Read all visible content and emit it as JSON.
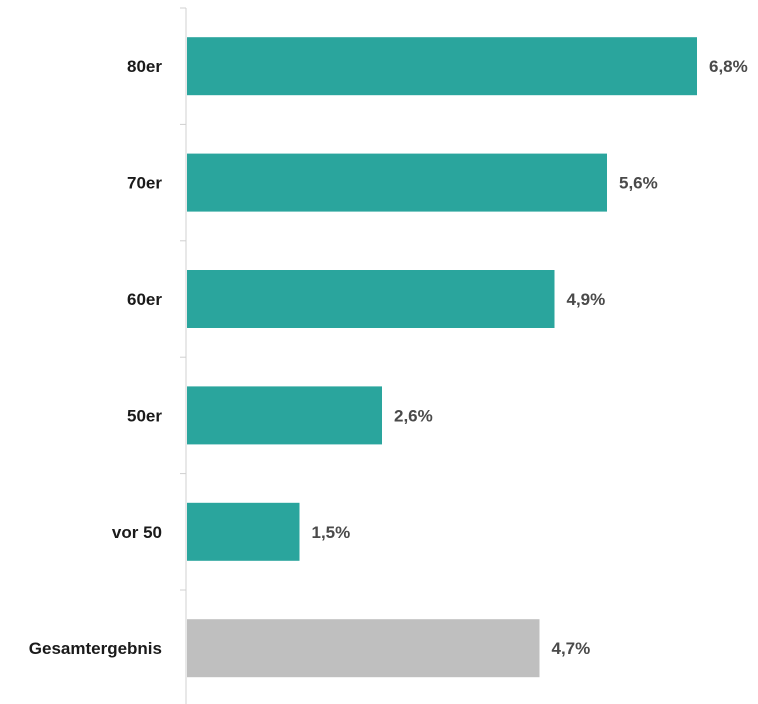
{
  "chart_data": {
    "type": "bar",
    "orientation": "horizontal",
    "categories": [
      "80er",
      "70er",
      "60er",
      "50er",
      "vor 50",
      "Gesamtergebnis"
    ],
    "values": [
      6.8,
      5.6,
      4.9,
      2.6,
      1.5,
      4.7
    ],
    "value_labels": [
      "6,8%",
      "5,6%",
      "4,9%",
      "2,6%",
      "1,5%",
      "4,7%"
    ],
    "unit": "%",
    "title": "",
    "xlabel": "",
    "ylabel": "",
    "xlim": [
      0,
      7.5
    ],
    "grid": false,
    "legend": "none",
    "colors": {
      "bar": "#2aa59d",
      "total_bar": "#bfbfbf",
      "axis": "#d0d0d0"
    }
  }
}
